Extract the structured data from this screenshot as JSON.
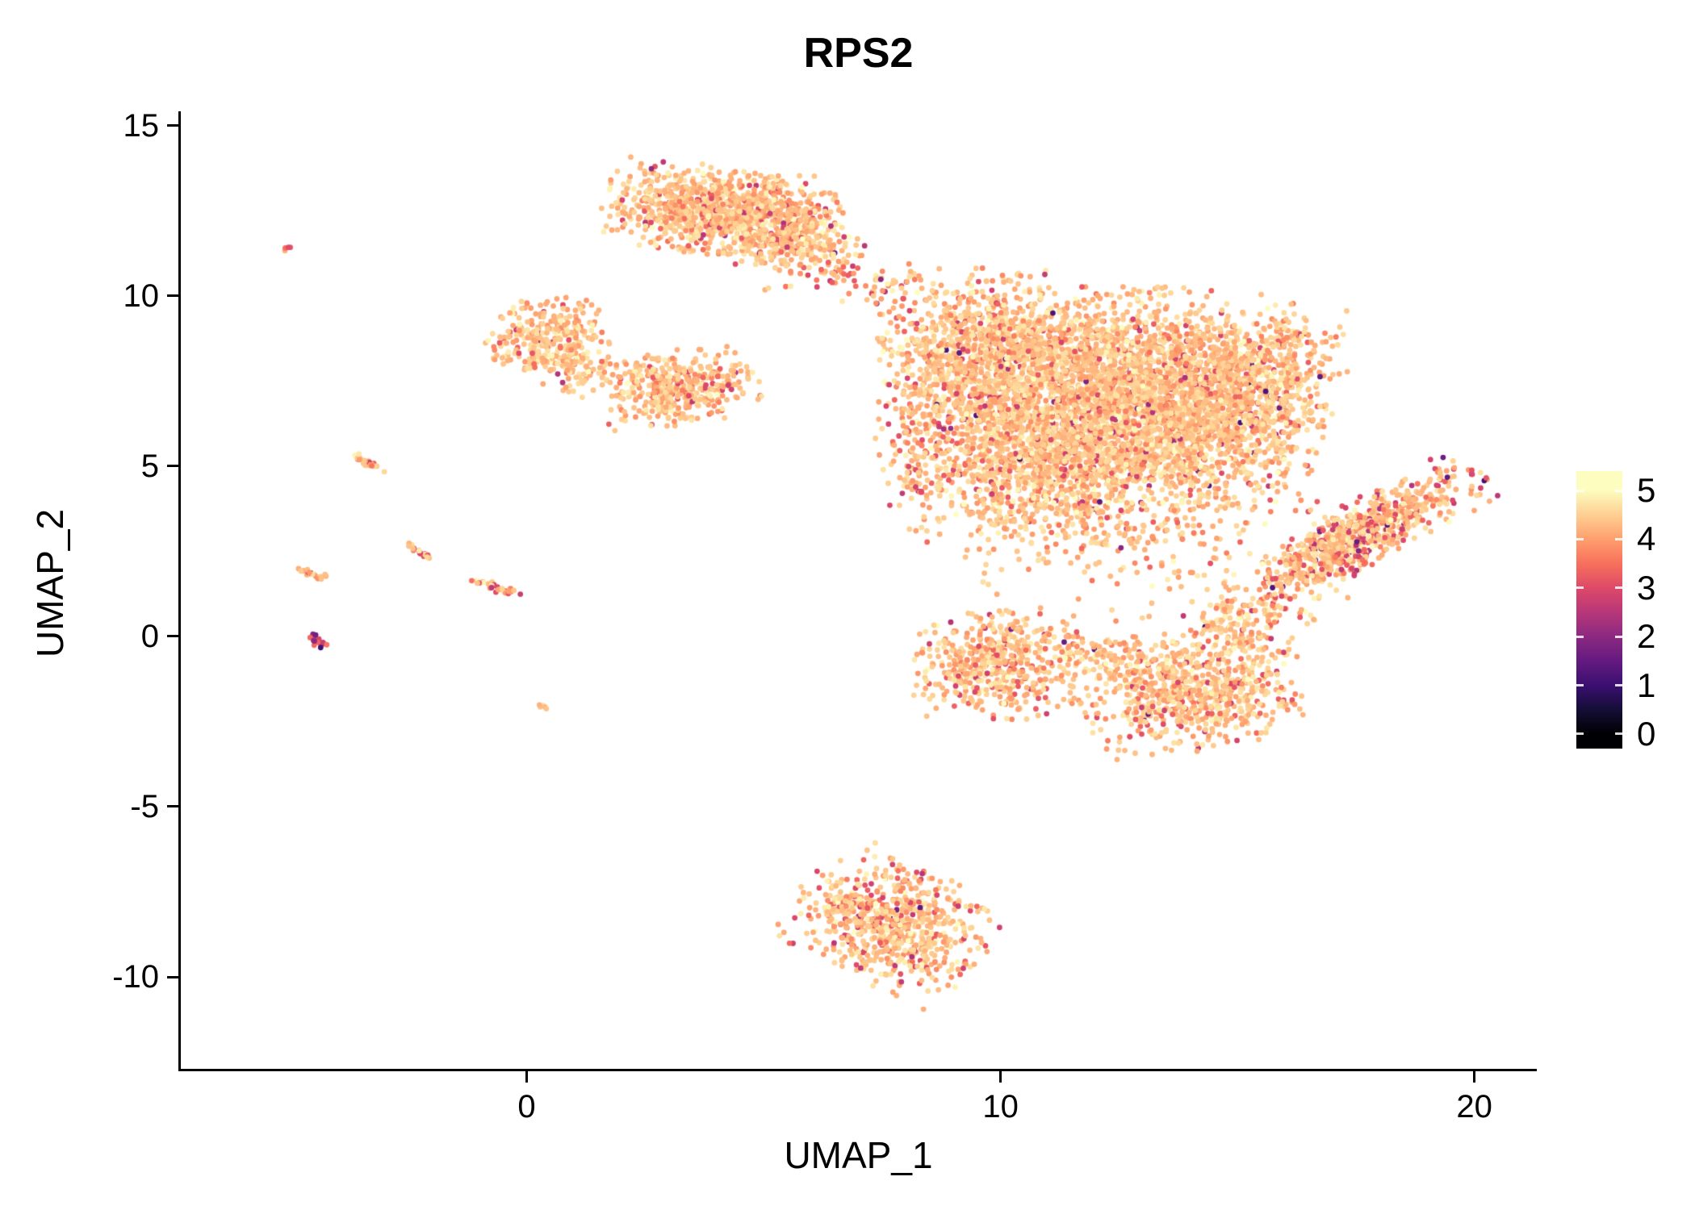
{
  "chart_data": {
    "type": "scatter",
    "title": "RPS2",
    "xlabel": "UMAP_1",
    "ylabel": "UMAP_2",
    "x_ticks": [
      0,
      10,
      20
    ],
    "y_ticks": [
      15,
      10,
      5,
      0,
      -5,
      -10
    ],
    "x_range": [
      -7.3,
      21.3
    ],
    "y_range": [
      -12.7,
      15.8
    ],
    "grid": false,
    "legend_position": "right",
    "point_radius_px": 3.4,
    "seed": 7,
    "colorbar": {
      "ticks": [
        5,
        4,
        3,
        2,
        1,
        0
      ],
      "value_min": -0.3,
      "value_max": 5.4,
      "stops": [
        [
          0,
          "#000004"
        ],
        [
          0.5,
          "#140e36"
        ],
        [
          1,
          "#3b0f70"
        ],
        [
          1.5,
          "#641a80"
        ],
        [
          2,
          "#8c2981"
        ],
        [
          2.5,
          "#b73779"
        ],
        [
          3,
          "#de4968"
        ],
        [
          3.5,
          "#f7705c"
        ],
        [
          4,
          "#fe9f6d"
        ],
        [
          4.5,
          "#fecf92"
        ],
        [
          5,
          "#fcfdbf"
        ]
      ]
    },
    "value_profile_default": {
      "mean": 4.35,
      "sd": 0.3,
      "redFrac": 0.07,
      "redMean": 3.15,
      "redSd": 0.35,
      "darkFrac": 0.005,
      "darkMin": 1.0,
      "darkMax": 2.6
    },
    "clusters": [
      {
        "name": "top-blob",
        "cx": 4.1,
        "cy": 12.5,
        "sx": 1.15,
        "sy": 0.6,
        "rot": -8,
        "n": 1000
      },
      {
        "name": "top-blob-east",
        "cx": 5.7,
        "cy": 11.7,
        "sx": 0.65,
        "sy": 0.5,
        "rot": -20,
        "n": 250
      },
      {
        "name": "top-trail",
        "cx": 7.0,
        "cy": 10.5,
        "sx": 1.3,
        "sy": 0.45,
        "rot": -12,
        "n": 90,
        "val": {
          "redFrac": 0.18
        }
      },
      {
        "name": "left-upper-blob",
        "cx": 0.45,
        "cy": 8.8,
        "sx": 0.62,
        "sy": 0.55,
        "rot": 0,
        "n": 280
      },
      {
        "name": "left-upper-tail",
        "cx": 1.05,
        "cy": 7.85,
        "sx": 0.5,
        "sy": 0.35,
        "rot": -30,
        "n": 90
      },
      {
        "name": "mid-small-blob",
        "cx": 3.2,
        "cy": 7.3,
        "sx": 0.78,
        "sy": 0.5,
        "rot": 12,
        "n": 400
      },
      {
        "name": "main-northwest",
        "cx": 9.6,
        "cy": 8.3,
        "sx": 1.05,
        "sy": 1.15,
        "rot": 0,
        "n": 1000,
        "val": {
          "redFrac": 0.1
        }
      },
      {
        "name": "main-core",
        "cx": 12.6,
        "cy": 7.3,
        "sx": 1.7,
        "sy": 1.35,
        "rot": 0,
        "n": 2400
      },
      {
        "name": "main-south",
        "cx": 11.0,
        "cy": 5.3,
        "sx": 1.4,
        "sy": 1.0,
        "rot": 0,
        "n": 1100
      },
      {
        "name": "main-east",
        "cx": 14.6,
        "cy": 6.3,
        "sx": 1.1,
        "sy": 1.2,
        "rot": 0,
        "n": 900
      },
      {
        "name": "main-south-sparse",
        "cx": 11.8,
        "cy": 3.6,
        "sx": 1.7,
        "sy": 0.8,
        "rot": 0,
        "n": 300
      },
      {
        "name": "main-east-arm",
        "cx": 15.9,
        "cy": 8.0,
        "sx": 0.65,
        "sy": 0.8,
        "rot": 0,
        "n": 220
      },
      {
        "name": "main-west-edge",
        "cx": 8.4,
        "cy": 5.6,
        "sx": 0.45,
        "sy": 1.2,
        "rot": 0,
        "n": 160,
        "val": {
          "redFrac": 0.2
        }
      },
      {
        "name": "right-wing",
        "cx": 17.5,
        "cy": 2.9,
        "sx": 1.5,
        "sy": 0.42,
        "rot": 38,
        "n": 800,
        "val": {
          "redFrac": 0.22,
          "darkFrac": 0.015
        }
      },
      {
        "name": "lower-mid-blob",
        "cx": 9.9,
        "cy": -0.8,
        "sx": 0.8,
        "sy": 0.75,
        "rot": 0,
        "n": 500,
        "val": {
          "redFrac": 0.12
        }
      },
      {
        "name": "lower-right-blob",
        "cx": 14.0,
        "cy": -1.6,
        "sx": 1.15,
        "sy": 0.85,
        "rot": 15,
        "n": 750,
        "val": {
          "redFrac": 0.1
        }
      },
      {
        "name": "lower-bridge",
        "cx": 12.0,
        "cy": -0.55,
        "sx": 0.9,
        "sy": 0.3,
        "rot": -10,
        "n": 120
      },
      {
        "name": "lower-right-arm",
        "cx": 14.9,
        "cy": 0.3,
        "sx": 0.4,
        "sy": 0.6,
        "rot": 20,
        "n": 90
      },
      {
        "name": "bottom-blob",
        "cx": 7.7,
        "cy": -8.4,
        "sx": 1.0,
        "sy": 0.8,
        "rot": -35,
        "n": 700,
        "val": {
          "redFrac": 0.16,
          "darkFrac": 0.01
        }
      },
      {
        "name": "gap-sparse",
        "cx": 12.8,
        "cy": 2.1,
        "sx": 1.8,
        "sy": 0.8,
        "rot": 0,
        "n": 70
      },
      {
        "name": "wing-bridge",
        "cx": 15.9,
        "cy": 0.9,
        "sx": 0.7,
        "sy": 0.45,
        "rot": 30,
        "n": 50,
        "val": {
          "redFrac": 0.2
        }
      },
      {
        "name": "streak-a",
        "cx": -3.35,
        "cy": 5.1,
        "sx": 0.22,
        "sy": 0.05,
        "rot": -35,
        "n": 26,
        "val": {
          "redFrac": 0.3
        }
      },
      {
        "name": "streak-b",
        "cx": -2.3,
        "cy": 2.5,
        "sx": 0.18,
        "sy": 0.05,
        "rot": -35,
        "n": 20,
        "val": {
          "redFrac": 0.3
        }
      },
      {
        "name": "streak-c",
        "cx": -0.7,
        "cy": 1.45,
        "sx": 0.3,
        "sy": 0.06,
        "rot": -25,
        "n": 34,
        "val": {
          "redFrac": 0.45
        }
      },
      {
        "name": "streak-d",
        "cx": -4.55,
        "cy": 1.85,
        "sx": 0.18,
        "sy": 0.05,
        "rot": -25,
        "n": 20,
        "val": {
          "redFrac": 0.3
        }
      },
      {
        "name": "streak-purple",
        "cx": -4.4,
        "cy": -0.15,
        "sx": 0.12,
        "sy": 0.07,
        "rot": -45,
        "n": 18,
        "val": {
          "mean": 2.7,
          "sd": 0.7,
          "redFrac": 0.0,
          "redMean": 3.0,
          "redSd": 0.3,
          "darkFrac": 0.2,
          "darkMin": 1.5,
          "darkMax": 2.5
        }
      },
      {
        "name": "dot-small",
        "cx": 0.3,
        "cy": -2.05,
        "sx": 0.07,
        "sy": 0.05,
        "rot": 0,
        "n": 5
      },
      {
        "name": "dot-topleft",
        "cx": -5.05,
        "cy": 11.4,
        "sx": 0.06,
        "sy": 0.05,
        "rot": 0,
        "n": 4,
        "val": {
          "redFrac": 0.5
        }
      }
    ]
  },
  "style": {
    "background": "#ffffff",
    "axis_color": "#000000",
    "text_color": "#000000"
  }
}
